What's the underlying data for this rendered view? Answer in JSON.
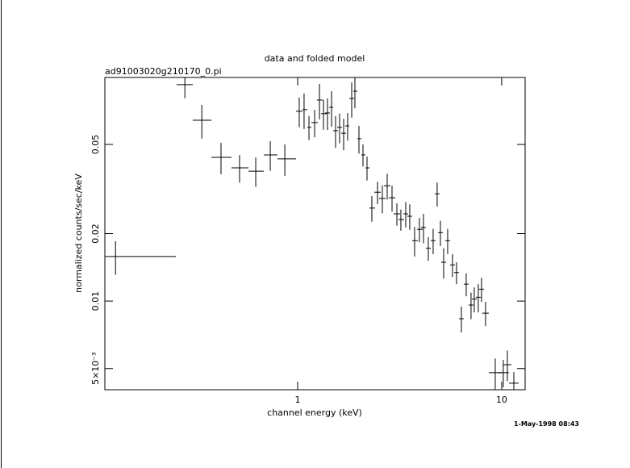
{
  "chart_data": {
    "type": "errorbar",
    "title": "data and folded model",
    "subtitle": "ad91003020g210170_0.pi",
    "x_label": "channel energy (keV)",
    "y_label": "normalized counts/sec/keV",
    "annotation": "1-May-1998 08:43",
    "color": "#000000",
    "xscale": "log",
    "yscale": "log",
    "xlim": [
      0.1135,
      13.03
    ],
    "ylim": [
      0.00402,
      0.0995
    ],
    "xticks": [
      1,
      10
    ],
    "yticks": [
      {
        "value": 0.005,
        "label": "5×10⁻³"
      },
      0.01,
      0.02,
      0.05
    ],
    "x": [
      0.128,
      0.28,
      0.339,
      0.421,
      0.519,
      0.623,
      0.734,
      0.865,
      1.018,
      1.075,
      1.136,
      1.211,
      1.279,
      1.338,
      1.4,
      1.466,
      1.534,
      1.605,
      1.68,
      1.758,
      1.84,
      1.908,
      1.997,
      2.09,
      2.188,
      2.31,
      2.463,
      2.6,
      2.747,
      2.901,
      3.064,
      3.205,
      3.386,
      3.543,
      3.742,
      3.953,
      4.137,
      4.369,
      4.613,
      4.828,
      5.008,
      5.194,
      5.435,
      5.741,
      6.006,
      6.345,
      6.701,
      7.076,
      7.337,
      7.68,
      7.965,
      8.337,
      9.298,
      10.18,
      10.66,
      11.47
    ],
    "x_lo": [
      0.1135,
      0.255,
      0.306,
      0.378,
      0.474,
      0.574,
      0.683,
      0.796,
      0.982,
      1.056,
      1.115,
      1.167,
      1.244,
      1.302,
      1.363,
      1.427,
      1.493,
      1.562,
      1.634,
      1.71,
      1.791,
      1.874,
      1.961,
      2.053,
      2.148,
      2.248,
      2.374,
      2.507,
      2.648,
      2.797,
      2.953,
      3.12,
      3.295,
      3.448,
      3.641,
      3.846,
      4.025,
      4.251,
      4.489,
      4.699,
      4.873,
      5.052,
      5.288,
      5.585,
      5.845,
      6.172,
      6.519,
      6.887,
      7.141,
      7.472,
      7.752,
      8.037,
      8.647,
      9.555,
      10.18,
      10.85
    ],
    "x_hi": [
      0.253,
      0.306,
      0.378,
      0.474,
      0.574,
      0.683,
      0.796,
      0.982,
      1.056,
      1.115,
      1.167,
      1.255,
      1.326,
      1.388,
      1.439,
      1.493,
      1.577,
      1.65,
      1.727,
      1.791,
      1.891,
      1.961,
      2.053,
      2.148,
      2.248,
      2.396,
      2.553,
      2.697,
      2.848,
      3.009,
      3.177,
      3.325,
      3.479,
      3.641,
      3.881,
      4.1,
      4.251,
      4.489,
      4.742,
      4.963,
      5.147,
      5.338,
      5.585,
      5.898,
      6.172,
      6.519,
      6.887,
      7.272,
      7.542,
      7.891,
      8.185,
      8.647,
      10.0,
      10.85,
      11.15,
      12.11
    ],
    "values": [
      0.0158,
      0.0924,
      0.0641,
      0.0438,
      0.0393,
      0.038,
      0.0449,
      0.0431,
      0.0703,
      0.0715,
      0.0596,
      0.0626,
      0.0789,
      0.0686,
      0.0691,
      0.0732,
      0.0576,
      0.0596,
      0.0561,
      0.0605,
      0.0802,
      0.0864,
      0.053,
      0.0449,
      0.0393,
      0.026,
      0.0306,
      0.0287,
      0.0327,
      0.0289,
      0.0245,
      0.0231,
      0.0245,
      0.0239,
      0.0186,
      0.0209,
      0.0213,
      0.0172,
      0.0186,
      0.0301,
      0.0202,
      0.0149,
      0.0186,
      0.0145,
      0.0134,
      0.00834,
      0.0119,
      0.0096,
      0.0102,
      0.0104,
      0.0113,
      0.00883,
      0.00479,
      0.00479,
      0.0052,
      0.0043
    ],
    "yerr": [
      0.0027,
      0.012,
      0.011,
      0.007,
      0.0055,
      0.0057,
      0.0068,
      0.0069,
      0.0106,
      0.0129,
      0.0073,
      0.0088,
      0.0142,
      0.0104,
      0.0111,
      0.0132,
      0.0093,
      0.009,
      0.009,
      0.0085,
      0.0144,
      0.0139,
      0.0075,
      0.0051,
      0.0048,
      0.0034,
      0.0035,
      0.0041,
      0.0043,
      0.0038,
      0.0028,
      0.0025,
      0.0032,
      0.0031,
      0.0028,
      0.0026,
      0.0032,
      0.0021,
      0.0024,
      0.0037,
      0.0026,
      0.0023,
      0.0024,
      0.0017,
      0.0015,
      0.0011,
      0.0014,
      0.0013,
      0.0013,
      0.0015,
      0.0014,
      0.0011,
      0.00075,
      0.00067,
      0.00081,
      0.00052
    ]
  }
}
